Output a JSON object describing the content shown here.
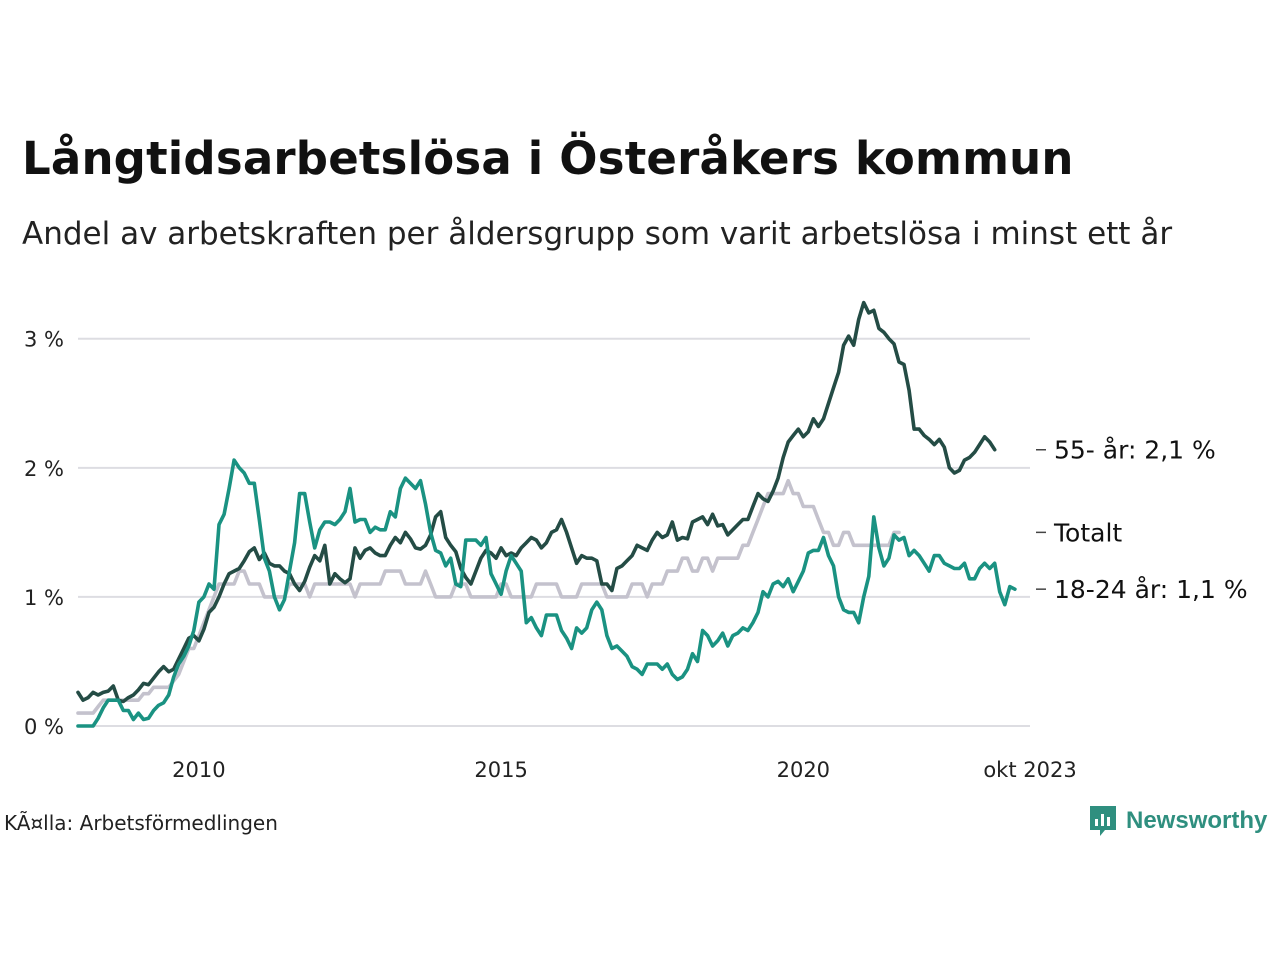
{
  "title": "Långtidsarbetslösa i Österåkers kommun",
  "subtitle": "Andel av arbetskraften per åldersgrupp som varit arbetslösa i minst ett år",
  "source": "KÃ¤lla: Arbetsförmedlingen",
  "brand": "Newsworthy",
  "colors": {
    "grid": "#dddde2",
    "brand": "#2f8f7f"
  },
  "chart_data": {
    "type": "line",
    "x_start": 2008.0,
    "x_step": 0.08333,
    "xlim": [
      2008.0,
      2023.75
    ],
    "ylim": [
      0,
      3.3
    ],
    "y_ticks": [
      {
        "value": 0,
        "label": "0 %"
      },
      {
        "value": 1,
        "label": "1 %"
      },
      {
        "value": 2,
        "label": "2 %"
      },
      {
        "value": 3,
        "label": "3 %"
      }
    ],
    "x_ticks": [
      {
        "value": 2010,
        "label": "2010"
      },
      {
        "value": 2015,
        "label": "2015"
      },
      {
        "value": 2020,
        "label": "2020"
      },
      {
        "value": 2023.75,
        "label": "okt 2023"
      }
    ],
    "grid": true,
    "series": [
      {
        "name": "Totalt",
        "label": "Totalt",
        "color": "#c4c2cd",
        "values": [
          0.1,
          0.1,
          0.1,
          0.1,
          0.15,
          0.2,
          0.2,
          0.2,
          0.2,
          0.2,
          0.2,
          0.2,
          0.2,
          0.25,
          0.25,
          0.3,
          0.3,
          0.3,
          0.3,
          0.35,
          0.4,
          0.5,
          0.6,
          0.6,
          0.7,
          0.8,
          0.9,
          1.0,
          1.1,
          1.1,
          1.1,
          1.1,
          1.2,
          1.2,
          1.1,
          1.1,
          1.1,
          1.0,
          1.0,
          1.0,
          1.0,
          1.0,
          1.1,
          1.1,
          1.1,
          1.1,
          1.0,
          1.1,
          1.1,
          1.1,
          1.1,
          1.1,
          1.1,
          1.1,
          1.1,
          1.0,
          1.1,
          1.1,
          1.1,
          1.1,
          1.1,
          1.2,
          1.2,
          1.2,
          1.2,
          1.1,
          1.1,
          1.1,
          1.1,
          1.2,
          1.1,
          1.0,
          1.0,
          1.0,
          1.0,
          1.1,
          1.1,
          1.1,
          1.0,
          1.0,
          1.0,
          1.0,
          1.0,
          1.0,
          1.1,
          1.1,
          1.0,
          1.0,
          1.0,
          1.0,
          1.0,
          1.1,
          1.1,
          1.1,
          1.1,
          1.1,
          1.0,
          1.0,
          1.0,
          1.0,
          1.1,
          1.1,
          1.1,
          1.1,
          1.1,
          1.0,
          1.0,
          1.0,
          1.0,
          1.0,
          1.1,
          1.1,
          1.1,
          1.0,
          1.1,
          1.1,
          1.1,
          1.2,
          1.2,
          1.2,
          1.3,
          1.3,
          1.2,
          1.2,
          1.3,
          1.3,
          1.2,
          1.3,
          1.3,
          1.3,
          1.3,
          1.3,
          1.4,
          1.4,
          1.5,
          1.6,
          1.7,
          1.8,
          1.8,
          1.8,
          1.8,
          1.9,
          1.8,
          1.8,
          1.7,
          1.7,
          1.7,
          1.6,
          1.5,
          1.5,
          1.4,
          1.4,
          1.5,
          1.5,
          1.4,
          1.4,
          1.4,
          1.4,
          1.4,
          1.4,
          1.4,
          1.4,
          1.5,
          1.5
        ]
      },
      {
        "name": "55- år",
        "label": "55- år: 2,1 %",
        "color": "#244c45",
        "values": [
          0.26,
          0.2,
          0.22,
          0.26,
          0.24,
          0.26,
          0.27,
          0.31,
          0.2,
          0.19,
          0.22,
          0.24,
          0.28,
          0.33,
          0.32,
          0.37,
          0.42,
          0.46,
          0.42,
          0.44,
          0.52,
          0.6,
          0.68,
          0.7,
          0.66,
          0.75,
          0.88,
          0.92,
          1.0,
          1.1,
          1.18,
          1.2,
          1.22,
          1.28,
          1.35,
          1.38,
          1.29,
          1.34,
          1.26,
          1.24,
          1.24,
          1.2,
          1.18,
          1.1,
          1.05,
          1.12,
          1.23,
          1.32,
          1.28,
          1.4,
          1.1,
          1.18,
          1.14,
          1.11,
          1.14,
          1.38,
          1.3,
          1.36,
          1.38,
          1.34,
          1.32,
          1.32,
          1.4,
          1.46,
          1.42,
          1.5,
          1.45,
          1.38,
          1.37,
          1.4,
          1.48,
          1.62,
          1.66,
          1.46,
          1.4,
          1.35,
          1.22,
          1.15,
          1.1,
          1.2,
          1.3,
          1.36,
          1.34,
          1.3,
          1.38,
          1.32,
          1.34,
          1.32,
          1.38,
          1.42,
          1.46,
          1.44,
          1.38,
          1.42,
          1.5,
          1.52,
          1.6,
          1.5,
          1.38,
          1.26,
          1.32,
          1.3,
          1.3,
          1.28,
          1.1,
          1.1,
          1.05,
          1.22,
          1.24,
          1.28,
          1.32,
          1.4,
          1.38,
          1.36,
          1.44,
          1.5,
          1.46,
          1.48,
          1.58,
          1.44,
          1.46,
          1.45,
          1.58,
          1.6,
          1.62,
          1.56,
          1.64,
          1.55,
          1.56,
          1.48,
          1.52,
          1.56,
          1.6,
          1.6,
          1.7,
          1.8,
          1.76,
          1.74,
          1.82,
          1.92,
          2.08,
          2.2,
          2.25,
          2.3,
          2.24,
          2.28,
          2.38,
          2.32,
          2.38,
          2.5,
          2.62,
          2.74,
          2.95,
          3.02,
          2.95,
          3.15,
          3.28,
          3.2,
          3.22,
          3.08,
          3.05,
          3.0,
          2.96,
          2.82,
          2.8,
          2.6,
          2.3,
          2.3,
          2.25,
          2.22,
          2.18,
          2.22,
          2.16,
          2.0,
          1.96,
          1.98,
          2.06,
          2.08,
          2.12,
          2.18,
          2.24,
          2.2,
          2.14
        ]
      },
      {
        "name": "18-24 år",
        "label": "18-24 år: 1,1 %",
        "color": "#1a9282",
        "values": [
          0.0,
          0.0,
          0.0,
          0.0,
          0.06,
          0.14,
          0.2,
          0.2,
          0.2,
          0.12,
          0.12,
          0.05,
          0.1,
          0.05,
          0.06,
          0.12,
          0.16,
          0.18,
          0.24,
          0.38,
          0.48,
          0.54,
          0.62,
          0.74,
          0.96,
          1.0,
          1.1,
          1.06,
          1.56,
          1.64,
          1.84,
          2.06,
          2.0,
          1.96,
          1.88,
          1.88,
          1.6,
          1.3,
          1.2,
          1.0,
          0.9,
          0.98,
          1.2,
          1.42,
          1.8,
          1.8,
          1.58,
          1.38,
          1.52,
          1.58,
          1.58,
          1.56,
          1.6,
          1.66,
          1.84,
          1.58,
          1.6,
          1.6,
          1.5,
          1.54,
          1.52,
          1.52,
          1.66,
          1.62,
          1.84,
          1.92,
          1.88,
          1.84,
          1.9,
          1.72,
          1.5,
          1.36,
          1.34,
          1.24,
          1.3,
          1.1,
          1.08,
          1.44,
          1.44,
          1.44,
          1.4,
          1.46,
          1.18,
          1.1,
          1.02,
          1.2,
          1.32,
          1.26,
          1.2,
          0.8,
          0.84,
          0.76,
          0.7,
          0.86,
          0.86,
          0.86,
          0.74,
          0.68,
          0.6,
          0.76,
          0.72,
          0.76,
          0.9,
          0.96,
          0.9,
          0.7,
          0.6,
          0.62,
          0.58,
          0.54,
          0.46,
          0.44,
          0.4,
          0.48,
          0.48,
          0.48,
          0.44,
          0.48,
          0.4,
          0.36,
          0.38,
          0.44,
          0.56,
          0.5,
          0.74,
          0.7,
          0.62,
          0.66,
          0.72,
          0.62,
          0.7,
          0.72,
          0.76,
          0.74,
          0.8,
          0.88,
          1.04,
          1.0,
          1.1,
          1.12,
          1.08,
          1.14,
          1.04,
          1.12,
          1.2,
          1.34,
          1.36,
          1.36,
          1.46,
          1.32,
          1.24,
          1.0,
          0.9,
          0.88,
          0.88,
          0.8,
          1.0,
          1.16,
          1.62,
          1.38,
          1.24,
          1.3,
          1.48,
          1.44,
          1.46,
          1.32,
          1.36,
          1.32,
          1.26,
          1.2,
          1.32,
          1.32,
          1.26,
          1.24,
          1.22,
          1.22,
          1.26,
          1.14,
          1.14,
          1.22,
          1.26,
          1.22,
          1.26,
          1.04,
          0.94,
          1.08,
          1.06
        ]
      }
    ]
  }
}
